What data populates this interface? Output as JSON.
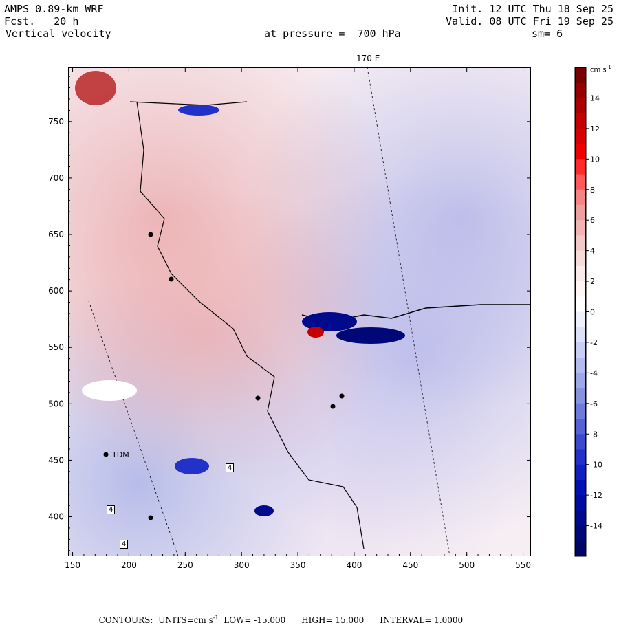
{
  "header": {
    "model": "AMPS 0.89-km WRF",
    "fcst": "Fcst.   20 h",
    "field": "Vertical velocity",
    "init": "Init. 12 UTC Thu 18 Sep 25",
    "valid": "Valid. 08 UTC Fri 19 Sep 25",
    "pressure": "at pressure =  700 hPa",
    "smooth": "sm= 6"
  },
  "map": {
    "meridian_label": "170 E",
    "station_label": "TDM",
    "station_markers": [
      "4",
      "4",
      "4"
    ]
  },
  "chart_data": {
    "type": "heatmap",
    "title": "Vertical velocity at pressure = 700 hPa",
    "x_ticks": [
      150,
      200,
      250,
      300,
      350,
      400,
      450,
      500,
      550
    ],
    "y_ticks": [
      400,
      450,
      500,
      550,
      600,
      650,
      700,
      750
    ],
    "xlim": [
      146,
      557
    ],
    "ylim": [
      365,
      798
    ],
    "colorbar": {
      "units": "cm s",
      "units_exp": "-1",
      "ticks": [
        14,
        12,
        10,
        8,
        6,
        4,
        2,
        0,
        -2,
        -4,
        -6,
        -8,
        -10,
        -12,
        -14
      ],
      "range": [
        -16,
        16
      ],
      "colors": [
        "#7a0000",
        "#940000",
        "#ad0000",
        "#c40000",
        "#db0000",
        "#f00000",
        "#ff2a2a",
        "#ff5a5a",
        "#f58585",
        "#eea0a0",
        "#f0b4b4",
        "#f3c8c8",
        "#f7dada",
        "#fbeaea",
        "#fff5f5",
        "#ffffff",
        "#eef0fb",
        "#dde1f7",
        "#c9cff2",
        "#b4bced",
        "#9fa8e7",
        "#8893e0",
        "#6f7bdb",
        "#5562d6",
        "#3b49cf",
        "#2232c9",
        "#0f1fc0",
        "#0010b3",
        "#000ca0",
        "#000a8c",
        "#000878",
        "#000664"
      ]
    },
    "contours": {
      "units": "cm s",
      "units_exp": "-1",
      "low": "-15.000",
      "high": "15.000",
      "interval": "1.0000"
    }
  },
  "footer": {
    "contours_label": "CONTOURS:",
    "units_label": "UNITS=",
    "low_label": "LOW=",
    "high_label": "HIGH=",
    "interval_label": "INTERVAL="
  }
}
